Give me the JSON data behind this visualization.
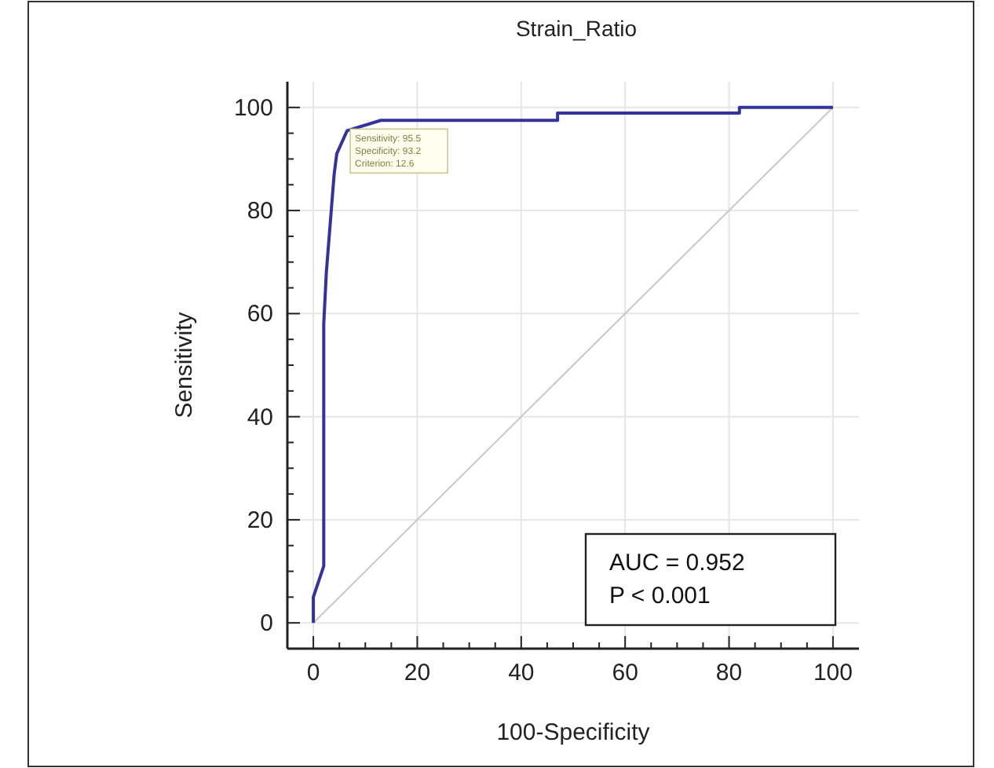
{
  "chart_data": {
    "type": "line",
    "title": "Strain_Ratio",
    "xlabel": "100-Specificity",
    "ylabel": "Sensitivity",
    "xlim": [
      -5,
      105
    ],
    "ylim": [
      -5,
      105
    ],
    "xticks": [
      0,
      {
        "value": 5,
        "label": null
      },
      {
        "value": 10,
        "label": null
      },
      {
        "value": 15,
        "label": null
      },
      20,
      {
        "value": 25,
        "label": null
      },
      {
        "value": 30,
        "label": null
      },
      {
        "value": 35,
        "label": null
      },
      40,
      {
        "value": 45,
        "label": null
      },
      {
        "value": 50,
        "label": null
      },
      {
        "value": 55,
        "label": null
      },
      60,
      {
        "value": 65,
        "label": null
      },
      {
        "value": 70,
        "label": null
      },
      {
        "value": 75,
        "label": null
      },
      80,
      {
        "value": 85,
        "label": null
      },
      {
        "value": 90,
        "label": null
      },
      {
        "value": 95,
        "label": null
      },
      100
    ],
    "yticks": [
      0,
      {
        "value": 5,
        "label": null
      },
      {
        "value": 10,
        "label": null
      },
      {
        "value": 15,
        "label": null
      },
      20,
      {
        "value": 25,
        "label": null
      },
      {
        "value": 30,
        "label": null
      },
      {
        "value": 35,
        "label": null
      },
      40,
      {
        "value": 45,
        "label": null
      },
      {
        "value": 50,
        "label": null
      },
      {
        "value": 55,
        "label": null
      },
      60,
      {
        "value": 65,
        "label": null
      },
      {
        "value": 70,
        "label": null
      },
      {
        "value": 75,
        "label": null
      },
      80,
      {
        "value": 85,
        "label": null
      },
      {
        "value": 90,
        "label": null
      },
      {
        "value": 95,
        "label": null
      },
      100
    ],
    "grid": true,
    "marker": "none",
    "line_style": "solid",
    "series": [
      {
        "color": "#c8c8c8",
        "x": [
          0,
          100
        ],
        "values": [
          0,
          100
        ]
      },
      {
        "color": "#333399",
        "x": [
          0,
          0,
          2,
          2,
          2.5,
          4,
          4.5,
          6.5,
          13,
          47,
          47,
          82,
          82,
          100
        ],
        "values": [
          0,
          5,
          11,
          58,
          68,
          87,
          91,
          95.5,
          97.5,
          97.5,
          98.9,
          98.9,
          100,
          100
        ]
      }
    ],
    "annotations": [
      {
        "text": "Sensitivity: 95.5\nSpecificity: 93.2\nCriterion: 12.6",
        "x": 6.5,
        "y": 95.5
      },
      "AUC = 0.952\nP < 0.001"
    ]
  }
}
